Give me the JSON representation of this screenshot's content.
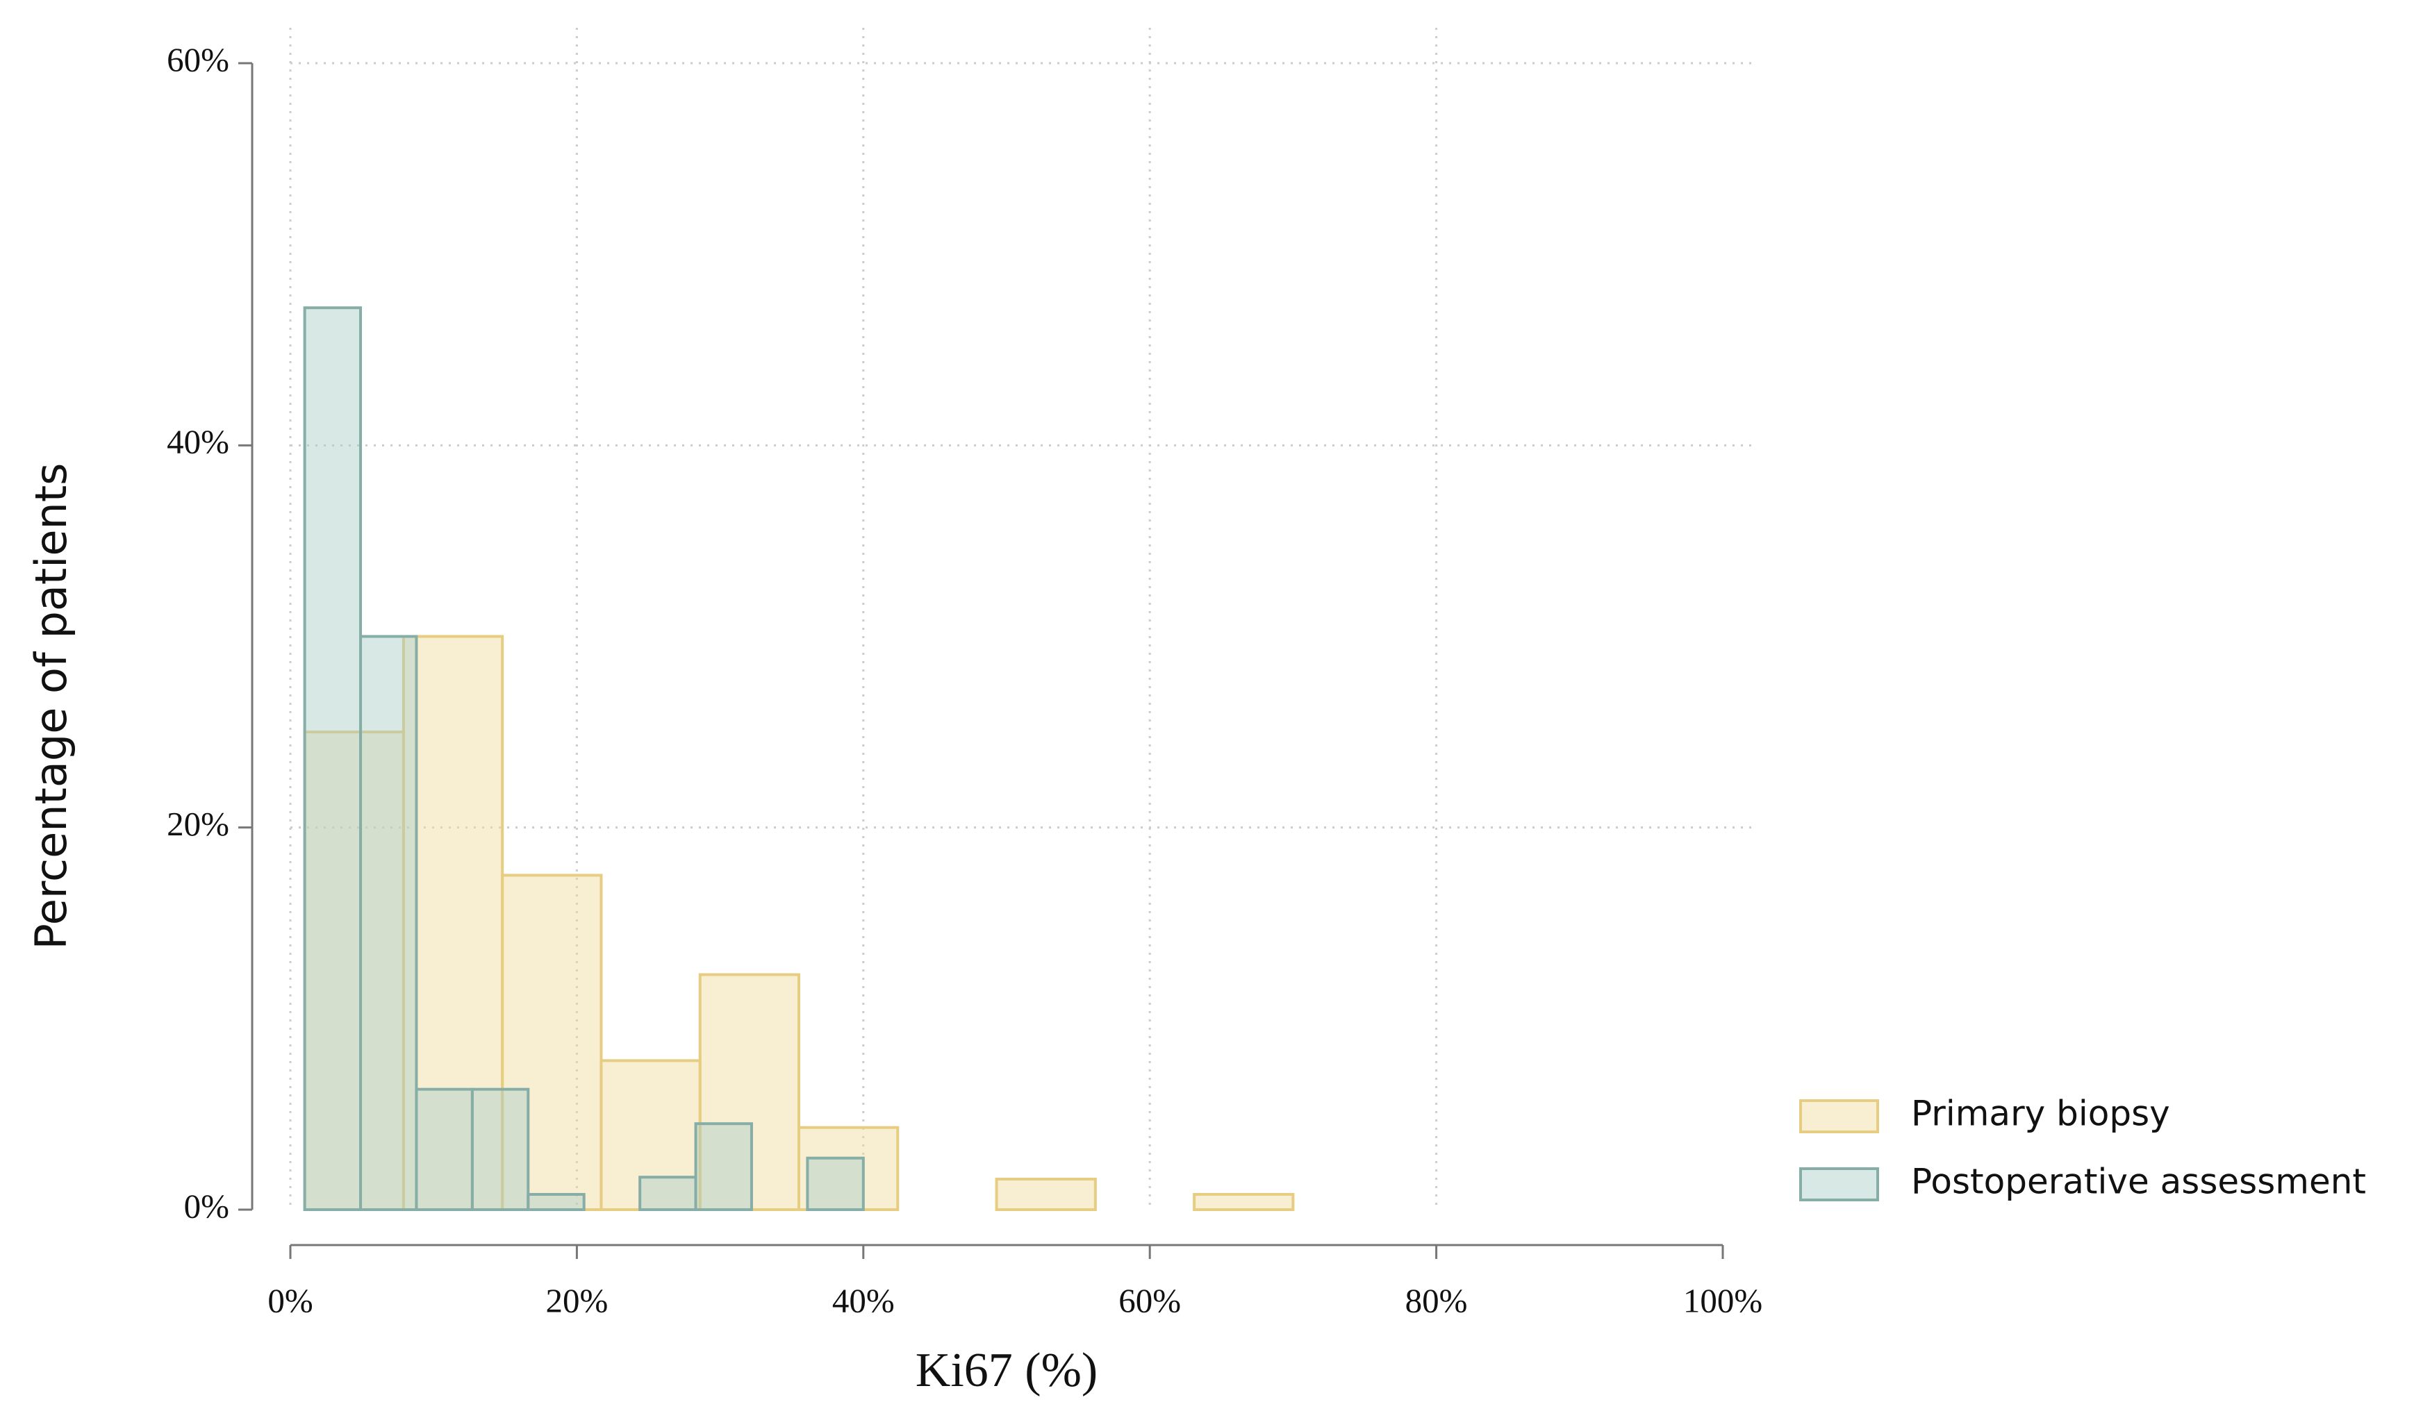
{
  "chart_data": {
    "type": "histogram",
    "xlabel": "Ki67 (%)",
    "ylabel": "Percentage of patients",
    "xlim": [
      0,
      100
    ],
    "ylim": [
      0,
      60
    ],
    "xticks": [
      {
        "value": 0,
        "label": "0%"
      },
      {
        "value": 20,
        "label": "20%"
      },
      {
        "value": 40,
        "label": "40%"
      },
      {
        "value": 60,
        "label": "60%"
      },
      {
        "value": 80,
        "label": "80%"
      },
      {
        "value": 100,
        "label": "100%"
      }
    ],
    "yticks": [
      {
        "value": 0,
        "label": "0%"
      },
      {
        "value": 20,
        "label": "20%"
      },
      {
        "value": 40,
        "label": "40%"
      },
      {
        "value": 60,
        "label": "60%"
      }
    ],
    "grid": true,
    "legend": "bottom-right",
    "series": [
      {
        "name": "Primary biopsy",
        "color": "#f0dc9e",
        "edge": "#e6cd82",
        "bins": [
          1,
          7.9,
          14.8,
          21.7,
          28.6,
          35.5,
          42.4,
          49.3,
          56.2,
          63.1,
          70
        ],
        "values": [
          25,
          30,
          17.5,
          7.8,
          12.3,
          4.3,
          0,
          1.6,
          0,
          0.8
        ]
      },
      {
        "name": "Postoperative assessment",
        "color": "#a9cbc6",
        "edge": "#86aea6",
        "bins": [
          1,
          4.9,
          8.8,
          12.7,
          16.6,
          20.5,
          24.4,
          28.3,
          32.2,
          36.1,
          40
        ],
        "values": [
          47.2,
          30,
          6.3,
          6.3,
          0.8,
          0,
          1.7,
          4.5,
          0,
          2.7
        ]
      }
    ]
  }
}
